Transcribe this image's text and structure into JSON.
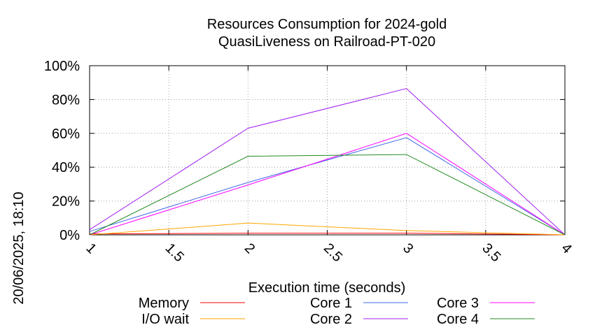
{
  "chart_data": {
    "type": "line",
    "title": "Resources Consumption for 2024-gold",
    "subtitle": "QuasiLiveness on Railroad-PT-020",
    "xlabel": "Execution time (seconds)",
    "ylabel": "",
    "timestamp": "20/06/2025, 18:10",
    "xlim": [
      1,
      4
    ],
    "ylim": [
      0,
      100
    ],
    "x_ticks": [
      "1",
      "1.5",
      "2",
      "2.5",
      "3",
      "3.5",
      "4"
    ],
    "y_ticks": [
      "0%",
      "20%",
      "40%",
      "60%",
      "80%",
      "100%"
    ],
    "grid": true,
    "legend_position": "bottom",
    "x": [
      1,
      2,
      3,
      4
    ],
    "series": [
      {
        "name": "Memory",
        "color": "#ff0000",
        "values": [
          0.5,
          1,
          1,
          0
        ]
      },
      {
        "name": "I/O wait",
        "color": "#ffa500",
        "values": [
          0,
          7,
          2.5,
          0
        ]
      },
      {
        "name": "Core 1",
        "color": "#4169e1",
        "values": [
          2,
          31,
          57.5,
          0
        ]
      },
      {
        "name": "Core 2",
        "color": "#a020f0",
        "values": [
          3,
          63,
          86.5,
          0
        ]
      },
      {
        "name": "Core 3",
        "color": "#ff00ff",
        "values": [
          0,
          29.5,
          60,
          0
        ]
      },
      {
        "name": "Core 4",
        "color": "#228b22",
        "values": [
          0,
          46.5,
          47.5,
          0
        ]
      }
    ]
  }
}
